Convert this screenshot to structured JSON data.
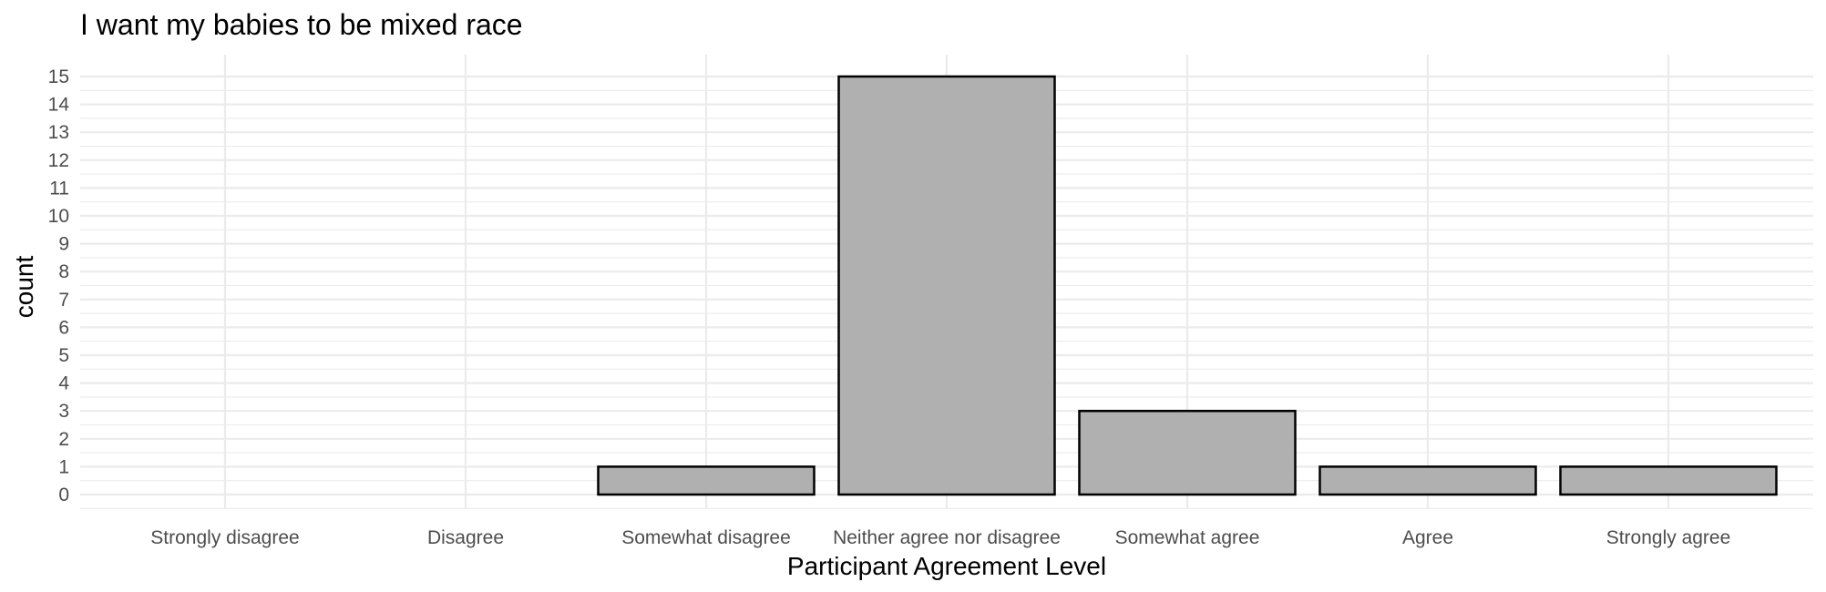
{
  "chart_data": {
    "type": "bar",
    "title": "I want my babies to be mixed race",
    "xlabel": "Participant Agreement Level",
    "ylabel": "count",
    "categories": [
      "Strongly disagree",
      "Disagree",
      "Somewhat disagree",
      "Neither agree nor disagree",
      "Somewhat agree",
      "Agree",
      "Strongly agree"
    ],
    "values": [
      0,
      0,
      1,
      15,
      3,
      1,
      1
    ],
    "yticks": [
      "0",
      "1",
      "2",
      "3",
      "4",
      "5",
      "6",
      "7",
      "8",
      "9",
      "10",
      "11",
      "12",
      "13",
      "14",
      "15"
    ],
    "ylim": [
      -0.5,
      15.8
    ],
    "grid": true,
    "legend": "none",
    "colors": {
      "bar_fill": "#b0b0b0",
      "bar_stroke": "#000000",
      "grid": "#ebebeb"
    }
  }
}
